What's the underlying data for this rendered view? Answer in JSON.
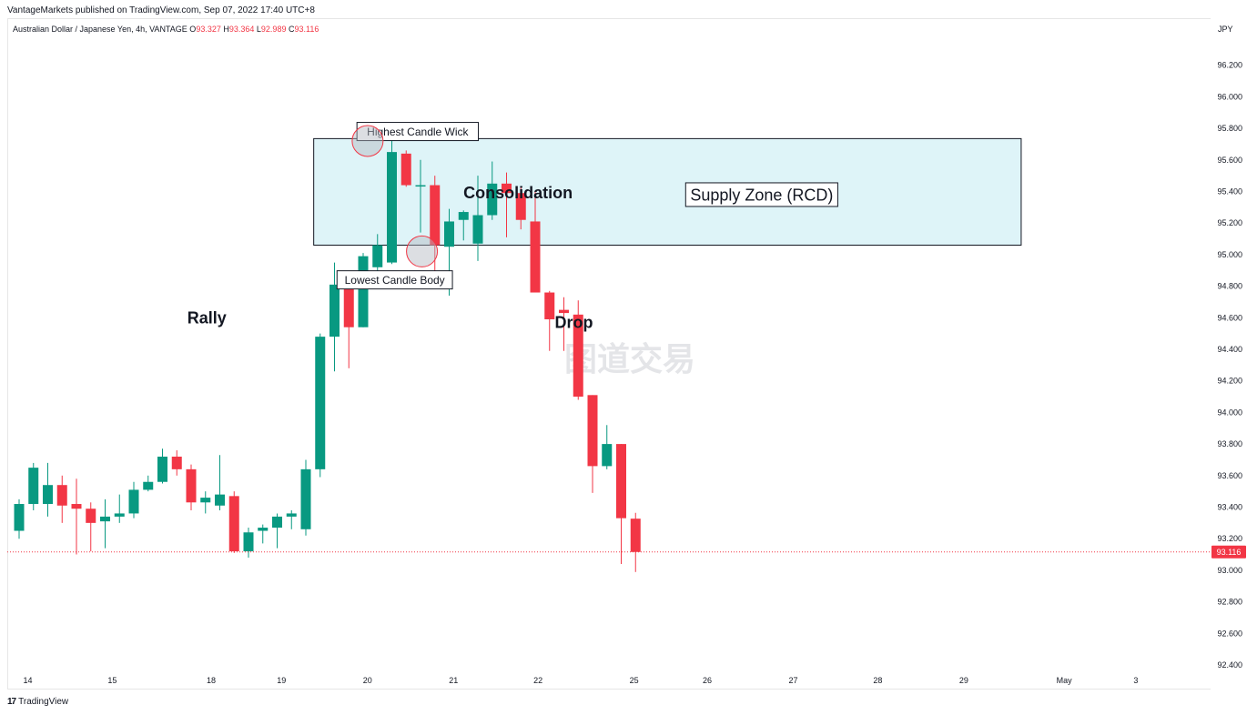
{
  "header": {
    "text": "VantageMarkets published on TradingView.com, Sep 07, 2022 17:40 UTC+8"
  },
  "legend": {
    "symbol": "Australian Dollar / Japanese Yen, 4h, VANTAGE",
    "o_label": "O",
    "o_value": "93.327",
    "h_label": "H",
    "h_value": "93.364",
    "l_label": "L",
    "l_value": "92.989",
    "c_label": "C",
    "c_value": "93.116"
  },
  "currency": "JPY",
  "footer": {
    "logo_mark": "17",
    "logo_text": "TradingView"
  },
  "watermark": "图道交易",
  "colors": {
    "up": "#089981",
    "down": "#f23645",
    "zone_fill": "#def4f8",
    "price_line": "#f23645"
  },
  "chart_data": {
    "type": "candlestick",
    "timeframe": "4h",
    "ylim": [
      92.3,
      96.45
    ],
    "y_ticks": [
      "92.400",
      "92.600",
      "92.800",
      "93.000",
      "93.200",
      "93.400",
      "93.600",
      "93.800",
      "94.000",
      "94.200",
      "94.400",
      "94.600",
      "94.800",
      "95.000",
      "95.200",
      "95.400",
      "95.600",
      "95.800",
      "96.000",
      "96.200"
    ],
    "x_ticks": [
      {
        "label": "14",
        "index": 0.6
      },
      {
        "label": "15",
        "index": 6.5
      },
      {
        "label": "18",
        "index": 13.4
      },
      {
        "label": "19",
        "index": 18.3
      },
      {
        "label": "20",
        "index": 24.3
      },
      {
        "label": "21",
        "index": 30.3
      },
      {
        "label": "22",
        "index": 36.2
      },
      {
        "label": "25",
        "index": 42.9
      },
      {
        "label": "26",
        "index": 48.0
      },
      {
        "label": "27",
        "index": 54.0
      },
      {
        "label": "28",
        "index": 59.9
      },
      {
        "label": "29",
        "index": 65.9
      },
      {
        "label": "May",
        "index": 72.9
      },
      {
        "label": "3",
        "index": 77.9
      }
    ],
    "candles": [
      {
        "o": 93.25,
        "h": 93.45,
        "l": 93.2,
        "c": 93.42
      },
      {
        "o": 93.42,
        "h": 93.68,
        "l": 93.38,
        "c": 93.65
      },
      {
        "o": 93.42,
        "h": 93.68,
        "l": 93.34,
        "c": 93.54
      },
      {
        "o": 93.54,
        "h": 93.6,
        "l": 93.3,
        "c": 93.41
      },
      {
        "o": 93.42,
        "h": 93.58,
        "l": 93.1,
        "c": 93.39
      },
      {
        "o": 93.39,
        "h": 93.43,
        "l": 93.12,
        "c": 93.3
      },
      {
        "o": 93.31,
        "h": 93.45,
        "l": 93.14,
        "c": 93.34
      },
      {
        "o": 93.34,
        "h": 93.48,
        "l": 93.3,
        "c": 93.36
      },
      {
        "o": 93.36,
        "h": 93.56,
        "l": 93.33,
        "c": 93.51
      },
      {
        "o": 93.51,
        "h": 93.6,
        "l": 93.5,
        "c": 93.56
      },
      {
        "o": 93.56,
        "h": 93.77,
        "l": 93.55,
        "c": 93.72
      },
      {
        "o": 93.72,
        "h": 93.76,
        "l": 93.6,
        "c": 93.64
      },
      {
        "o": 93.64,
        "h": 93.67,
        "l": 93.38,
        "c": 93.43
      },
      {
        "o": 93.43,
        "h": 93.5,
        "l": 93.36,
        "c": 93.46
      },
      {
        "o": 93.41,
        "h": 93.73,
        "l": 93.38,
        "c": 93.48
      },
      {
        "o": 93.47,
        "h": 93.5,
        "l": 93.11,
        "c": 93.12
      },
      {
        "o": 93.12,
        "h": 93.27,
        "l": 93.08,
        "c": 93.24
      },
      {
        "o": 93.25,
        "h": 93.29,
        "l": 93.17,
        "c": 93.27
      },
      {
        "o": 93.27,
        "h": 93.36,
        "l": 93.14,
        "c": 93.34
      },
      {
        "o": 93.34,
        "h": 93.38,
        "l": 93.26,
        "c": 93.36
      },
      {
        "o": 93.26,
        "h": 93.7,
        "l": 93.22,
        "c": 93.64
      },
      {
        "o": 93.64,
        "h": 94.5,
        "l": 93.59,
        "c": 94.48
      },
      {
        "o": 94.48,
        "h": 94.95,
        "l": 94.26,
        "c": 94.81
      },
      {
        "o": 94.8,
        "h": 94.82,
        "l": 94.28,
        "c": 94.54
      },
      {
        "o": 94.54,
        "h": 95.01,
        "l": 94.54,
        "c": 94.99
      },
      {
        "o": 94.92,
        "h": 95.13,
        "l": 94.88,
        "c": 95.06
      },
      {
        "o": 94.95,
        "h": 95.74,
        "l": 94.94,
        "c": 95.65
      },
      {
        "o": 95.64,
        "h": 95.66,
        "l": 95.43,
        "c": 95.44
      },
      {
        "o": 95.44,
        "h": 95.6,
        "l": 95.14,
        "c": 95.44
      },
      {
        "o": 95.44,
        "h": 95.5,
        "l": 94.88,
        "c": 95.06
      },
      {
        "o": 95.05,
        "h": 95.29,
        "l": 94.74,
        "c": 95.21
      },
      {
        "o": 95.22,
        "h": 95.28,
        "l": 95.09,
        "c": 95.27
      },
      {
        "o": 95.07,
        "h": 95.5,
        "l": 94.96,
        "c": 95.25
      },
      {
        "o": 95.25,
        "h": 95.59,
        "l": 95.22,
        "c": 95.45
      },
      {
        "o": 95.45,
        "h": 95.52,
        "l": 95.11,
        "c": 95.39
      },
      {
        "o": 95.39,
        "h": 95.43,
        "l": 95.16,
        "c": 95.22
      },
      {
        "o": 95.21,
        "h": 95.4,
        "l": 94.76,
        "c": 94.76
      },
      {
        "o": 94.76,
        "h": 94.77,
        "l": 94.39,
        "c": 94.59
      },
      {
        "o": 94.65,
        "h": 94.73,
        "l": 94.39,
        "c": 94.63
      },
      {
        "o": 94.62,
        "h": 94.71,
        "l": 94.08,
        "c": 94.1
      },
      {
        "o": 94.11,
        "h": 94.11,
        "l": 93.49,
        "c": 93.66
      },
      {
        "o": 93.66,
        "h": 93.92,
        "l": 93.64,
        "c": 93.8
      },
      {
        "o": 93.8,
        "h": 93.8,
        "l": 93.04,
        "c": 93.33
      },
      {
        "o": 93.327,
        "h": 93.364,
        "l": 92.989,
        "c": 93.116
      }
    ],
    "last_price": {
      "value": 93.116,
      "label": "93.116"
    },
    "zone": {
      "label": "Supply Zone (RCD)",
      "from_index": 20.55,
      "to_index": 69.9,
      "top": 95.735,
      "bottom": 95.06
    },
    "annotations": [
      {
        "type": "box",
        "text": "Highest Candle Wick",
        "index": 27.8,
        "price": 95.78
      },
      {
        "type": "box",
        "text": "Lowest Candle Body",
        "index": 26.2,
        "price": 94.84
      },
      {
        "type": "box",
        "text": "Supply Zone (RCD)",
        "index": 51.8,
        "price": 95.38
      },
      {
        "type": "text",
        "text": "Consolidation",
        "index": 34.8,
        "price": 95.39
      },
      {
        "type": "text",
        "text": "Rally",
        "index": 13.1,
        "price": 94.6
      },
      {
        "type": "text",
        "text": "Drop",
        "index": 38.7,
        "price": 94.57
      },
      {
        "type": "circle",
        "index": 24.31,
        "price": 95.72
      },
      {
        "type": "circle",
        "index": 28.1,
        "price": 95.02
      }
    ]
  }
}
